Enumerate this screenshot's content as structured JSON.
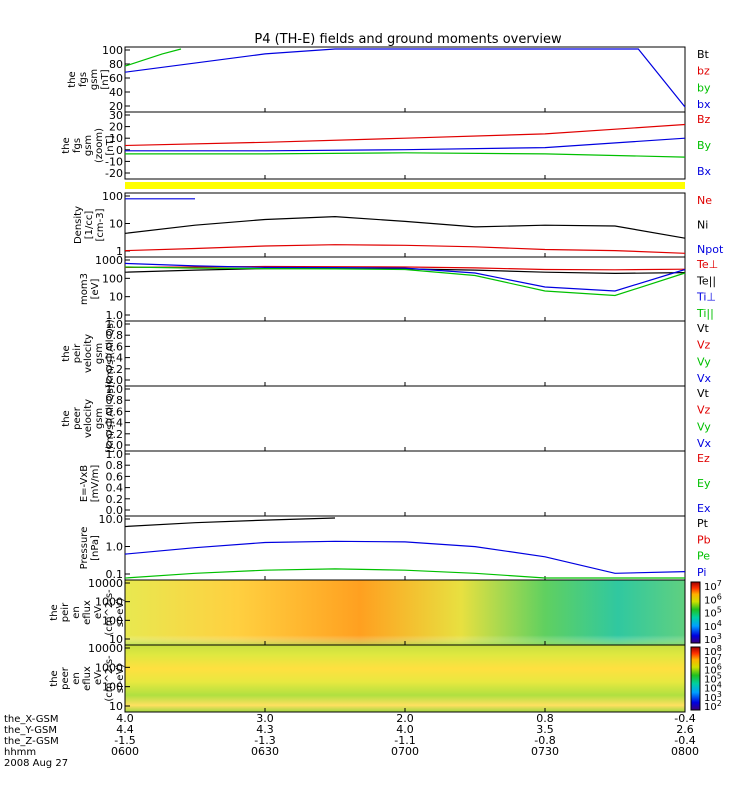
{
  "title": "P4 (TH-E) fields and ground moments overview",
  "panels": [
    {
      "ylabel": [
        "the",
        "fgs",
        "gsm",
        "[nT]"
      ],
      "ytick_labels": [
        "100",
        "80",
        "60",
        "40",
        "20"
      ],
      "legend": [
        {
          "text": "Bt",
          "color": "#000000"
        },
        {
          "text": "bz",
          "color": "#e00000"
        },
        {
          "text": "by",
          "color": "#00c000"
        },
        {
          "text": "bx",
          "color": "#0000e0"
        }
      ]
    },
    {
      "ylabel": [
        "the",
        "fgs",
        "gsm",
        "(zoom)",
        "[nT]"
      ],
      "ytick_labels": [
        "30",
        "20",
        "10",
        "0",
        "-10",
        "-20"
      ],
      "legend": [
        {
          "text": "Bz",
          "color": "#e00000"
        },
        {
          "text": "By",
          "color": "#00c000"
        },
        {
          "text": "Bx",
          "color": "#0000e0"
        }
      ]
    },
    {
      "ylabel": [
        "Density",
        "[1/cc]",
        "[cm-3]"
      ],
      "ytick_labels": [
        "100",
        "10",
        "1"
      ],
      "legend": [
        {
          "text": "Ne",
          "color": "#e00000"
        },
        {
          "text": "Ni",
          "color": "#000000"
        },
        {
          "text": "Npot",
          "color": "#0000e0"
        }
      ]
    },
    {
      "ylabel": [
        "mom3",
        "[eV]"
      ],
      "ytick_labels": [
        "1000",
        "100",
        "10",
        "1.0"
      ],
      "legend": [
        {
          "text": "Te⊥",
          "color": "#e00000"
        },
        {
          "text": "Te||",
          "color": "#000000"
        },
        {
          "text": "Ti⊥",
          "color": "#0000e0"
        },
        {
          "text": "Ti||",
          "color": "#00c000"
        }
      ]
    },
    {
      "ylabel": [
        "the",
        "peir",
        "velocity",
        "gsm",
        "[km/s](All Qs)"
      ],
      "ytick_labels": [
        "1.0",
        "0.8",
        "0.6",
        "0.4",
        "0.2",
        "0.0"
      ],
      "legend": [
        {
          "text": "Vt",
          "color": "#000000"
        },
        {
          "text": "Vz",
          "color": "#e00000"
        },
        {
          "text": "Vy",
          "color": "#00c000"
        },
        {
          "text": "Vx",
          "color": "#0000e0"
        }
      ]
    },
    {
      "ylabel": [
        "the",
        "peer",
        "velocity",
        "gsm",
        "[km/s](All Qs)"
      ],
      "ytick_labels": [
        "1.0",
        "0.8",
        "0.6",
        "0.4",
        "0.2",
        "0.0"
      ],
      "legend": [
        {
          "text": "Vt",
          "color": "#000000"
        },
        {
          "text": "Vz",
          "color": "#e00000"
        },
        {
          "text": "Vy",
          "color": "#00c000"
        },
        {
          "text": "Vx",
          "color": "#0000e0"
        }
      ]
    },
    {
      "ylabel": [
        "E=-VxB",
        "[mV/m]"
      ],
      "ytick_labels": [
        "1.0",
        "0.8",
        "0.6",
        "0.4",
        "0.2",
        "0.0"
      ],
      "legend": [
        {
          "text": "Ez",
          "color": "#e00000"
        },
        {
          "text": "Ey",
          "color": "#00c000"
        },
        {
          "text": "Ex",
          "color": "#0000e0"
        }
      ]
    },
    {
      "ylabel": [
        "Pressure",
        "[nPa]"
      ],
      "ytick_labels": [
        "10.0",
        "1.0",
        "0.1"
      ],
      "legend": [
        {
          "text": "Pt",
          "color": "#000000"
        },
        {
          "text": "Pb",
          "color": "#e00000"
        },
        {
          "text": "Pe",
          "color": "#00c000"
        },
        {
          "text": "Pi",
          "color": "#0000e0"
        }
      ]
    },
    {
      "ylabel": [
        "the",
        "peir",
        "en",
        "eflux",
        "eV",
        "(cm^2-s-",
        "sr-eV)"
      ],
      "ytick_labels": [
        "10000",
        "1000",
        "100",
        "10"
      ],
      "colorbar_labels": [
        "10^7",
        "10^6",
        "10^5",
        "10^4",
        "10^3"
      ]
    },
    {
      "ylabel": [
        "the",
        "peer",
        "en",
        "eflux",
        "eV",
        "(cm^2-s-",
        "sr-eV)"
      ],
      "ytick_labels": [
        "10000",
        "1000",
        "100",
        "10"
      ],
      "colorbar_labels": [
        "10^8",
        "10^7",
        "10^6",
        "10^5",
        "10^4",
        "10^3",
        "10^2"
      ]
    }
  ],
  "chart_data": [
    {
      "type": "line",
      "title": "P4 (TH-E) fields and ground moments overview",
      "panel": "fgs gsm [nT]",
      "x": [
        "0600",
        "0630",
        "0700",
        "0730",
        "0800"
      ],
      "ylim": [
        0,
        100
      ],
      "series": [
        {
          "name": "by",
          "color": "#00c000",
          "x": [
            "0600",
            "0608",
            "0612"
          ],
          "values": [
            72,
            92,
            100
          ]
        },
        {
          "name": "bx",
          "color": "#0000e0",
          "x": [
            "0600",
            "0630",
            "0645",
            "0750",
            "0800"
          ],
          "values": [
            62,
            92,
            100,
            100,
            5
          ]
        }
      ]
    },
    {
      "type": "line",
      "panel": "fgs gsm (zoom) [nT]",
      "ylim": [
        -25,
        35
      ],
      "x": [
        "0600",
        "0630",
        "0700",
        "0730",
        "0800"
      ],
      "series": [
        {
          "name": "Bz",
          "color": "#e00000",
          "values": [
            5,
            8,
            12,
            16,
            25
          ]
        },
        {
          "name": "By",
          "color": "#00c000",
          "values": [
            -3,
            -3,
            -2,
            -3,
            -6
          ]
        },
        {
          "name": "Bx",
          "color": "#0000e0",
          "values": [
            0,
            0,
            1,
            3,
            12
          ]
        }
      ]
    },
    {
      "type": "line",
      "panel": "Density [cm-3]",
      "ylim": [
        0.5,
        300
      ],
      "log_scale": true,
      "x": [
        "0600",
        "0615",
        "0630",
        "0645",
        "0700",
        "0715",
        "0730",
        "0745",
        "0800"
      ],
      "series": [
        {
          "name": "Ni",
          "color": "#000000",
          "values": [
            5,
            12,
            22,
            30,
            18,
            10,
            12,
            11,
            3
          ]
        },
        {
          "name": "Ne",
          "color": "#e00000",
          "values": [
            0.8,
            1.0,
            1.3,
            1.5,
            1.4,
            1.2,
            0.9,
            0.8,
            0.6
          ]
        },
        {
          "name": "Npot",
          "color": "#0000e0",
          "values": [
            200,
            200,
            null,
            null,
            null,
            null,
            null,
            null,
            null
          ]
        }
      ]
    },
    {
      "type": "line",
      "panel": "mom3 [eV]",
      "ylim": [
        1,
        1000
      ],
      "log_scale": true,
      "x": [
        "0600",
        "0615",
        "0630",
        "0645",
        "0700",
        "0715",
        "0730",
        "0745",
        "0800"
      ],
      "series": [
        {
          "name": "Te⊥",
          "color": "#e00000",
          "values": [
            380,
            400,
            420,
            410,
            400,
            360,
            300,
            290,
            310
          ]
        },
        {
          "name": "Te||",
          "color": "#000000",
          "values": [
            220,
            280,
            330,
            340,
            320,
            280,
            220,
            190,
            210
          ]
        },
        {
          "name": "Ti⊥",
          "color": "#0000e0",
          "values": [
            600,
            450,
            380,
            370,
            350,
            200,
            40,
            25,
            300
          ]
        },
        {
          "name": "Ti||",
          "color": "#00c000",
          "values": [
            400,
            350,
            330,
            320,
            300,
            150,
            25,
            15,
            200
          ]
        }
      ]
    },
    {
      "type": "line",
      "panel": "Pressure [nPa]",
      "ylim": [
        0.03,
        20
      ],
      "log_scale": true,
      "x": [
        "0600",
        "0615",
        "0630",
        "0645",
        "0700",
        "0715",
        "0730",
        "0745",
        "0800"
      ],
      "series": [
        {
          "name": "Pt",
          "color": "#000000",
          "values": [
            8,
            12,
            16,
            20,
            null,
            null,
            null,
            null,
            null
          ]
        },
        {
          "name": "Pi",
          "color": "#0000e0",
          "values": [
            0.4,
            0.8,
            1.4,
            1.6,
            1.5,
            0.9,
            0.3,
            0.05,
            0.06
          ]
        },
        {
          "name": "Pe",
          "color": "#00c000",
          "values": [
            0.03,
            0.05,
            0.07,
            0.08,
            0.07,
            0.05,
            0.03,
            0.03,
            0.03
          ]
        }
      ]
    }
  ],
  "xaxis": {
    "rows": [
      {
        "label": "the_X-GSM",
        "values": [
          "4.0",
          "3.0",
          "2.0",
          "0.8",
          "-0.4"
        ]
      },
      {
        "label": "the_Y-GSM",
        "values": [
          "4.4",
          "4.3",
          "4.0",
          "3.5",
          "2.6"
        ]
      },
      {
        "label": "the_Z-GSM",
        "values": [
          "-1.5",
          "-1.3",
          "-1.1",
          "-0.8",
          "-0.4"
        ]
      },
      {
        "label": "hhmm",
        "values": [
          "0600",
          "0630",
          "0700",
          "0730",
          "0800"
        ]
      }
    ],
    "date": "2008 Aug 27"
  }
}
